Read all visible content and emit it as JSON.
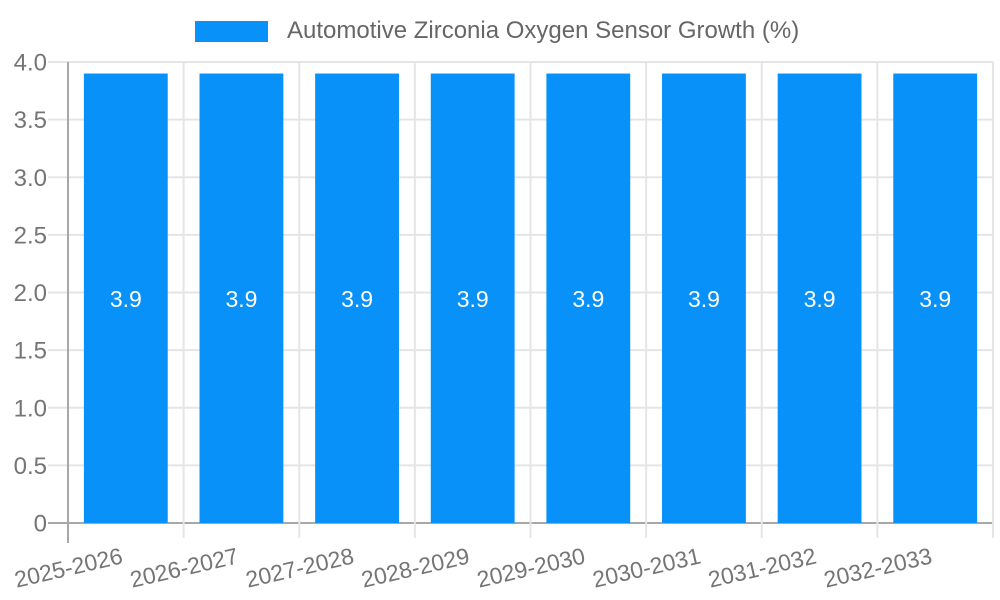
{
  "chart_data": {
    "type": "bar",
    "title": "",
    "legend": {
      "label": "Automotive Zirconia Oxygen Sensor Growth (%)",
      "position": "top"
    },
    "categories": [
      "2025-2026",
      "2026-2027",
      "2027-2028",
      "2028-2029",
      "2029-2030",
      "2030-2031",
      "2031-2032",
      "2032-2033"
    ],
    "series": [
      {
        "name": "Automotive Zirconia Oxygen Sensor Growth (%)",
        "values": [
          3.9,
          3.9,
          3.9,
          3.9,
          3.9,
          3.9,
          3.9,
          3.9
        ]
      }
    ],
    "value_labels": [
      "3.9",
      "3.9",
      "3.9",
      "3.9",
      "3.9",
      "3.9",
      "3.9",
      "3.9"
    ],
    "xlabel": "",
    "ylabel": "",
    "ylim": [
      0,
      4
    ],
    "yticks": [
      0,
      0.5,
      1,
      1.5,
      2,
      2.5,
      3,
      3.5,
      4
    ],
    "ytick_labels": [
      "0",
      "0.5",
      "1.0",
      "1.5",
      "2.0",
      "2.5",
      "3.0",
      "3.5",
      "4.0"
    ],
    "x_label_rotation_deg": -13,
    "grid": true,
    "colors": {
      "bar": "#0891F8",
      "grid": "#E5E5E5",
      "axis_line": "#A8A8A8",
      "tick_text": "#757575",
      "legend_text": "#666666",
      "value_label": "#FFFFFF",
      "background": "#FFFFFF"
    }
  }
}
